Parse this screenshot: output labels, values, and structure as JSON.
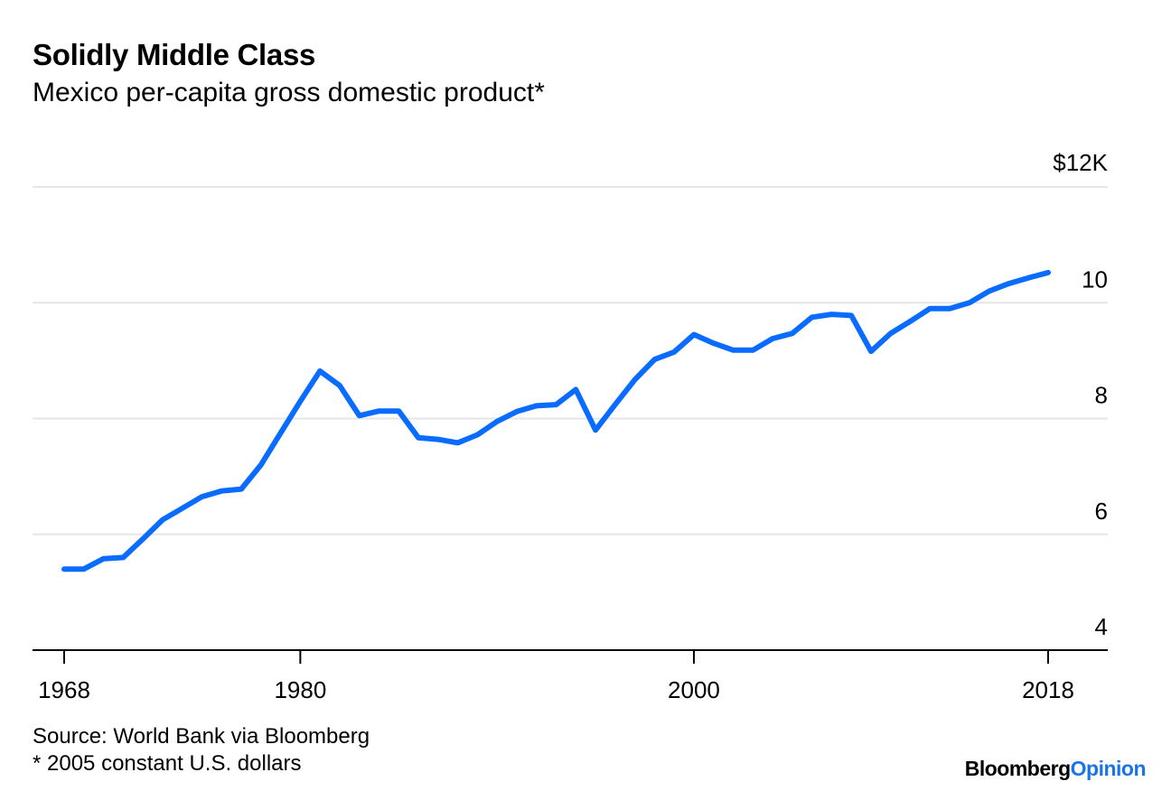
{
  "header": {
    "title": "Solidly Middle Class",
    "subtitle": "Mexico per-capita gross domestic product*"
  },
  "footer": {
    "source": "Source: World Bank via Bloomberg",
    "note": "* 2005 constant U.S. dollars",
    "brand_part1": "Bloomberg",
    "brand_part2": "Opinion"
  },
  "colors": {
    "line": "#0a6cff",
    "grid": "#e6e6e6",
    "axis": "#000000",
    "brand_accent": "#1a73e8"
  },
  "chart_data": {
    "type": "line",
    "title": "Solidly Middle Class",
    "subtitle": "Mexico per-capita gross domestic product*",
    "xlabel": "",
    "ylabel": "",
    "xlim": [
      1968,
      2018
    ],
    "ylim": [
      4,
      12
    ],
    "x_ticks": [
      1968,
      1980,
      2000,
      2018
    ],
    "x_tick_labels": [
      "1968",
      "1980",
      "2000",
      "2018"
    ],
    "y_ticks": [
      4,
      6,
      8,
      10,
      12
    ],
    "y_tick_labels": [
      "4",
      "6",
      "8",
      "10",
      "$12K"
    ],
    "grid": true,
    "y_axis_side": "right",
    "series": [
      {
        "x": [
          1968,
          1969,
          1970,
          1971,
          1972,
          1973,
          1974,
          1975,
          1976,
          1977,
          1978,
          1979,
          1980,
          1981,
          1982,
          1983,
          1984,
          1985,
          1986,
          1987,
          1988,
          1989,
          1990,
          1991,
          1992,
          1993,
          1994,
          1995,
          1996,
          1997,
          1998,
          1999,
          2000,
          2001,
          2002,
          2003,
          2004,
          2005,
          2006,
          2007,
          2008,
          2009,
          2010,
          2011,
          2012,
          2013,
          2014,
          2015,
          2016,
          2017,
          2018
        ],
        "values": [
          5.4,
          5.4,
          5.58,
          5.6,
          5.92,
          6.25,
          6.45,
          6.65,
          6.75,
          6.78,
          7.2,
          7.75,
          8.3,
          8.82,
          8.57,
          8.05,
          8.13,
          8.13,
          7.67,
          7.64,
          7.58,
          7.72,
          7.95,
          8.12,
          8.22,
          8.24,
          8.5,
          7.8,
          8.24,
          8.67,
          9.02,
          9.15,
          9.45,
          9.3,
          9.18,
          9.18,
          9.38,
          9.47,
          9.75,
          9.8,
          9.78,
          9.16,
          9.47,
          9.68,
          9.9,
          9.9,
          10.0,
          10.2,
          10.33,
          10.43,
          10.52
        ]
      }
    ]
  }
}
